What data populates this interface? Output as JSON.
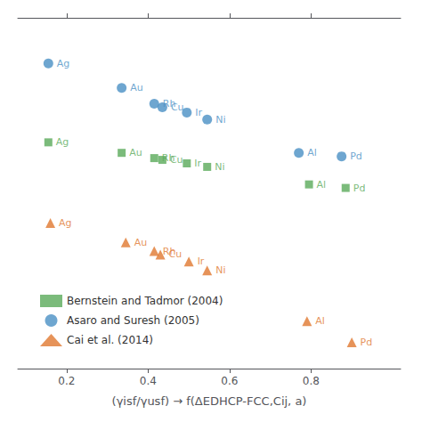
{
  "chart_data": {
    "type": "scatter",
    "xlabel": "(γisf/γusf) → f(ΔEDHCP-FCC,Cij, a)",
    "xlim": [
      0.08,
      1.02
    ],
    "xticks": [
      0.2,
      0.4,
      0.6,
      0.8
    ],
    "ylim": [
      0.0,
      1.0
    ],
    "tick_labels": "x",
    "grid": false,
    "legend": "lower left",
    "series": [
      {
        "name": "Bernstein and Tadmor (2004)",
        "color": "#5aaa5a",
        "marker": "square",
        "x": [
          0.155,
          0.335,
          0.415,
          0.435,
          0.495,
          0.545,
          0.795,
          0.885
        ],
        "values": [
          0.645,
          0.615,
          0.6,
          0.595,
          0.585,
          0.575,
          0.525,
          0.515
        ],
        "annotations": [
          "Ag",
          "Au",
          "Rh",
          "Cu",
          "Ir",
          "Ni",
          "Al",
          "Pd"
        ]
      },
      {
        "name": "Asaro and Suresh (2005)",
        "color": "#4a90c4",
        "marker": "circle",
        "x": [
          0.155,
          0.335,
          0.415,
          0.435,
          0.495,
          0.545,
          0.77,
          0.875
        ],
        "values": [
          0.87,
          0.8,
          0.755,
          0.745,
          0.73,
          0.71,
          0.615,
          0.605
        ],
        "annotations": [
          "Ag",
          "Au",
          "Rh",
          "Cu",
          "Ir",
          "Ni",
          "Al",
          "Pd"
        ]
      },
      {
        "name": "Cai et al. (2014)",
        "color": "#e07830",
        "marker": "triangle",
        "x": [
          0.16,
          0.345,
          0.415,
          0.43,
          0.5,
          0.545,
          0.79,
          0.9
        ],
        "values": [
          0.415,
          0.36,
          0.335,
          0.325,
          0.305,
          0.28,
          0.135,
          0.075
        ],
        "annotations": [
          "Ag",
          "Au",
          "Rh",
          "Cu",
          "Ir",
          "Ni",
          "Al",
          "Pd"
        ]
      }
    ]
  }
}
